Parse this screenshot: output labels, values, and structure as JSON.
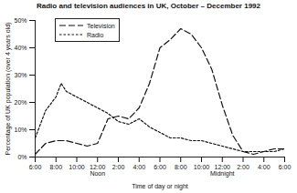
{
  "chart_data": {
    "type": "line",
    "title": "Radio and television audiences in UK, October – December 1992",
    "x_label": "Time of day or night",
    "y_label": "Percentage of UK population (over 4 years old)",
    "x": [
      6,
      7,
      8,
      8.5,
      9,
      10,
      11,
      12,
      13,
      14,
      15,
      16,
      17,
      18,
      19,
      20,
      21,
      22,
      23,
      24,
      25,
      26,
      27,
      28,
      29,
      30
    ],
    "series": [
      {
        "name": "Television",
        "color": "#111111",
        "line_style": "dashed",
        "values": [
          1,
          5,
          6,
          6,
          6,
          5,
          4,
          5,
          14,
          15,
          14,
          18,
          27,
          40,
          43,
          47,
          45,
          40,
          32,
          19,
          8,
          2,
          1,
          2,
          3,
          3
        ]
      },
      {
        "name": "Radio",
        "color": "#111111",
        "line_style": "dotted",
        "values": [
          7,
          17,
          22,
          27,
          24,
          22,
          20,
          18,
          16,
          13,
          12,
          14,
          11,
          9,
          7,
          7,
          6,
          6,
          5,
          4,
          3,
          2,
          2,
          2,
          2,
          3
        ]
      }
    ],
    "xlim": [
      6,
      30
    ],
    "xticks": [
      {
        "value": 6,
        "label": "6:00"
      },
      {
        "value": 8,
        "label": "8:00"
      },
      {
        "value": 10,
        "label": "10:00"
      },
      {
        "value": 12,
        "label": "12:00"
      },
      {
        "value": 14,
        "label": "2:00"
      },
      {
        "value": 16,
        "label": "4:00"
      },
      {
        "value": 18,
        "label": "6:00"
      },
      {
        "value": 20,
        "label": "8:00"
      },
      {
        "value": 22,
        "label": "10:00"
      },
      {
        "value": 24,
        "label": "12:00"
      },
      {
        "value": 26,
        "label": "2:00"
      },
      {
        "value": 28,
        "label": "4:00"
      },
      {
        "value": 30,
        "label": "6:00"
      }
    ],
    "ylim": [
      0,
      50
    ],
    "yticks": [
      {
        "value": 0,
        "label": "0%"
      },
      {
        "value": 10,
        "label": "10%"
      },
      {
        "value": 20,
        "label": "20%"
      },
      {
        "value": 30,
        "label": "30%"
      },
      {
        "value": 40,
        "label": "40%"
      },
      {
        "value": 50,
        "label": "50%"
      }
    ],
    "annotations": [
      {
        "x": 12,
        "text": "Noon"
      },
      {
        "x": 24,
        "text": "Midnight"
      }
    ],
    "legend": "top-left",
    "grid": false
  }
}
